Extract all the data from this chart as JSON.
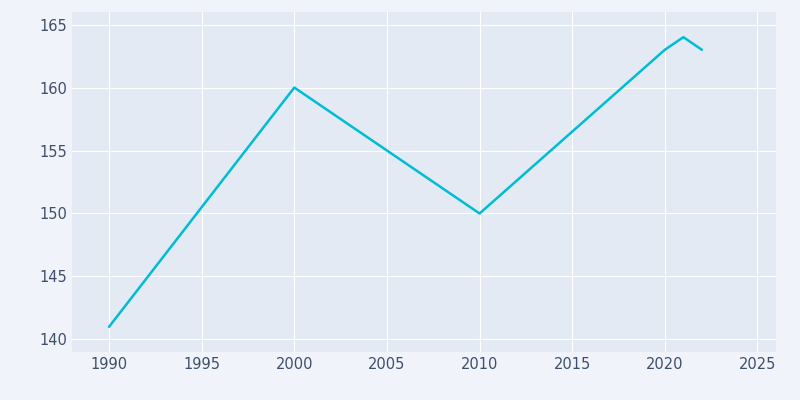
{
  "years": [
    1990,
    2000,
    2005,
    2010,
    2020,
    2021,
    2022
  ],
  "population": [
    141,
    160,
    155,
    150,
    163,
    164,
    163
  ],
  "line_color": "#00BCD4",
  "bg_color": "#E3EAF4",
  "outer_bg": "#f0f4fa",
  "grid_color": "#ffffff",
  "tick_color": "#3d4f6b",
  "xlim": [
    1988,
    2026
  ],
  "ylim": [
    139,
    166
  ],
  "yticks": [
    140,
    145,
    150,
    155,
    160,
    165
  ],
  "xticks": [
    1990,
    1995,
    2000,
    2005,
    2010,
    2015,
    2020,
    2025
  ],
  "linewidth": 1.8
}
